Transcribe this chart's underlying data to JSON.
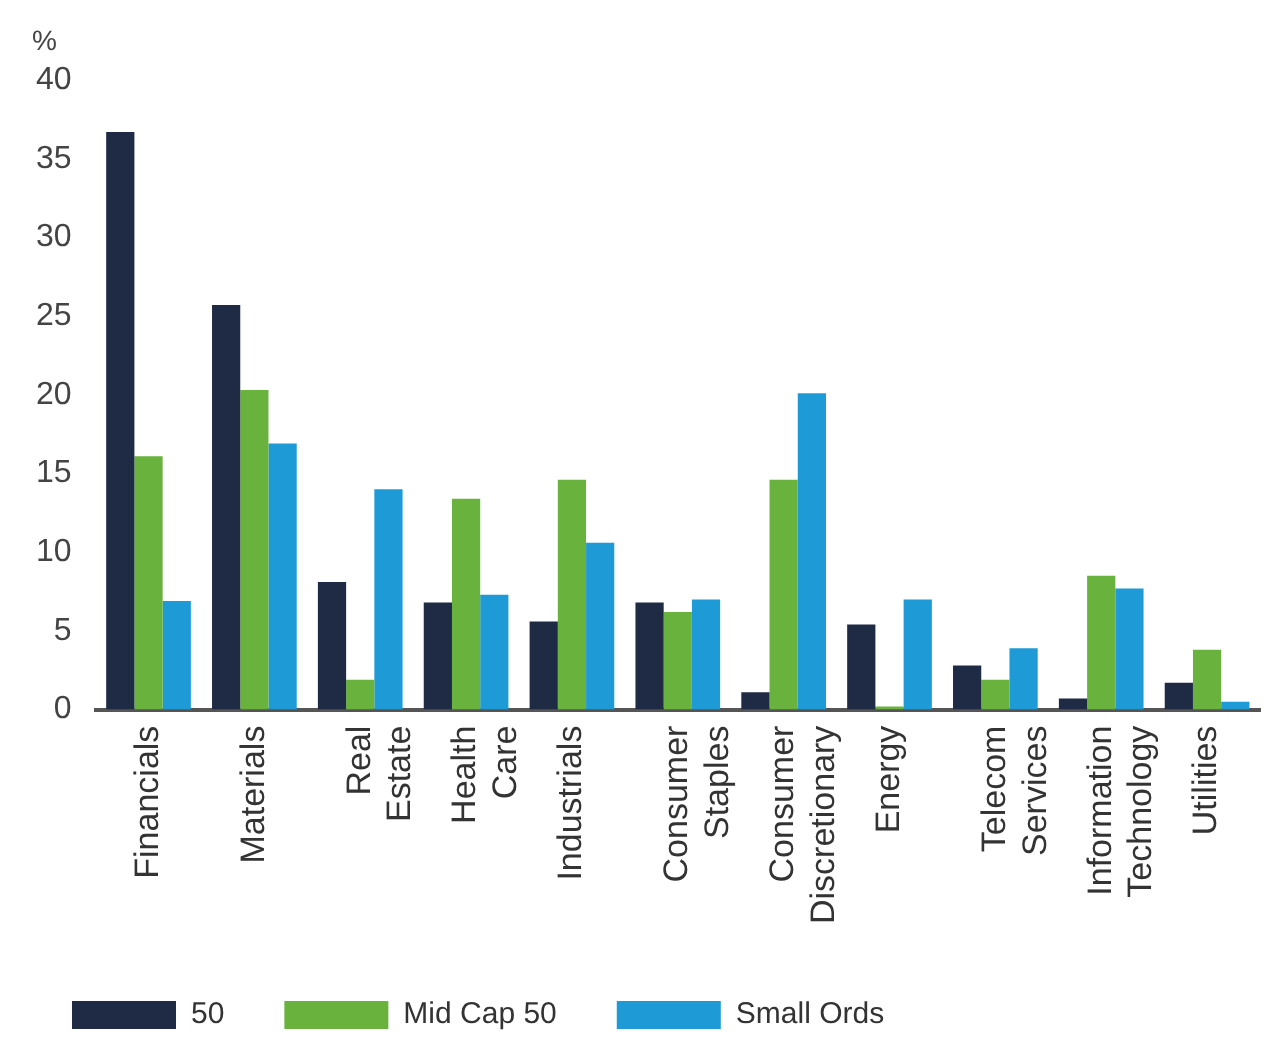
{
  "chart_data": {
    "type": "bar",
    "ylabel": "%",
    "categories": [
      "Financials",
      "Materials",
      "Real Estate",
      "Health Care",
      "Industrials",
      "Consumer Staples",
      "Consumer Discretionary",
      "Energy",
      "Telecom Services",
      "Information Technology",
      "Utilities"
    ],
    "series": [
      {
        "name": "50",
        "color": "#1f2a44",
        "values": [
          36.7,
          25.7,
          8.1,
          6.8,
          5.6,
          6.8,
          1.1,
          5.4,
          2.8,
          0.7,
          1.7
        ]
      },
      {
        "name": "Mid Cap 50",
        "color": "#6ab23e",
        "values": [
          16.1,
          20.3,
          1.9,
          13.4,
          14.6,
          6.2,
          14.6,
          0.2,
          1.9,
          8.5,
          3.8
        ]
      },
      {
        "name": "Small Ords",
        "color": "#1e9ad6",
        "values": [
          6.9,
          16.9,
          14.0,
          7.3,
          10.6,
          7.0,
          20.1,
          7.0,
          3.9,
          7.7,
          0.5
        ]
      }
    ],
    "ylim": [
      0,
      40
    ],
    "yticks": [
      0,
      5,
      10,
      15,
      20,
      25,
      30,
      35,
      40
    ],
    "grid": false,
    "legend": "bottom"
  }
}
